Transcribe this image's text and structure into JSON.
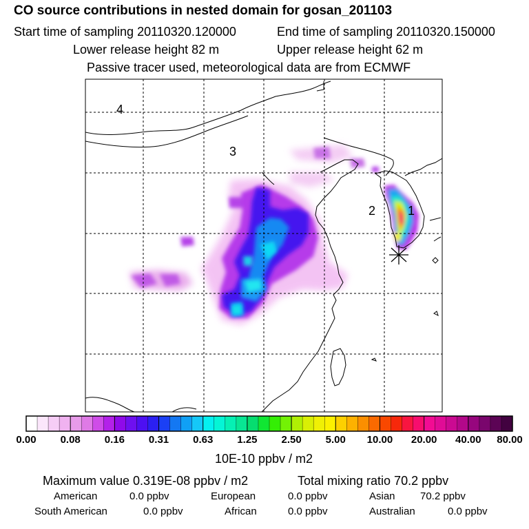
{
  "header": {
    "title": "CO  source contributions in nested domain for gosan_201103",
    "start_time": "Start time of sampling 20110320.120000",
    "end_time": "End time of sampling 20110320.150000",
    "lower_release": "Lower release height   82 m",
    "upper_release": "Upper release height   62 m",
    "tracer_note": "Passive tracer used, meteorological data are from ECMWF"
  },
  "chart_data": {
    "type": "heatmap",
    "title": "CO  source contributions in nested domain for gosan_201103",
    "region_labels": [
      "1",
      "2",
      "3",
      "4"
    ],
    "grid": true,
    "colorbar": {
      "unit_label": "10E-10 ppbv / m2",
      "ticks": [
        "0.00",
        "0.08",
        "0.16",
        "0.31",
        "0.63",
        "1.25",
        "2.50",
        "5.00",
        "10.00",
        "20.00",
        "40.00",
        "80.00"
      ],
      "colors": [
        "#ffffff",
        "#fbe6fb",
        "#f6cdf6",
        "#f0b2f0",
        "#e79be9",
        "#df7ae6",
        "#cf4ce8",
        "#b321e9",
        "#8f0ae9",
        "#6e10f0",
        "#4d10f2",
        "#2b20f2",
        "#1b40f5",
        "#1478f2",
        "#10a0f5",
        "#15c8f8",
        "#05f0f0",
        "#05f5d6",
        "#06f0b4",
        "#08e694",
        "#06dd70",
        "#10e633",
        "#34ee05",
        "#73f205",
        "#b0ef05",
        "#d9ef05",
        "#f0f005",
        "#fcf000",
        "#fdd000",
        "#fdb100",
        "#fb8f00",
        "#fa6a00",
        "#f94800",
        "#f7280b",
        "#f81540",
        "#f70d6e",
        "#f20c93",
        "#e00c96",
        "#cb0a92",
        "#b3088a",
        "#97067e",
        "#7a066d",
        "#5c0455",
        "#420240"
      ]
    }
  },
  "summary": {
    "max_value": "Maximum value  0.319E-08 ppbv / m2",
    "total_mixing": "Total mixing ratio       70.2 ppbv",
    "regions": [
      {
        "name": "American",
        "value": "0.0 ppbv"
      },
      {
        "name": "European",
        "value": "0.0 ppbv"
      },
      {
        "name": "Asian",
        "value": "70.2 ppbv"
      },
      {
        "name": "South American",
        "value": "0.0 ppbv"
      },
      {
        "name": "African",
        "value": "0.0 ppbv"
      },
      {
        "name": "Australian",
        "value": "0.0 ppbv"
      }
    ]
  }
}
